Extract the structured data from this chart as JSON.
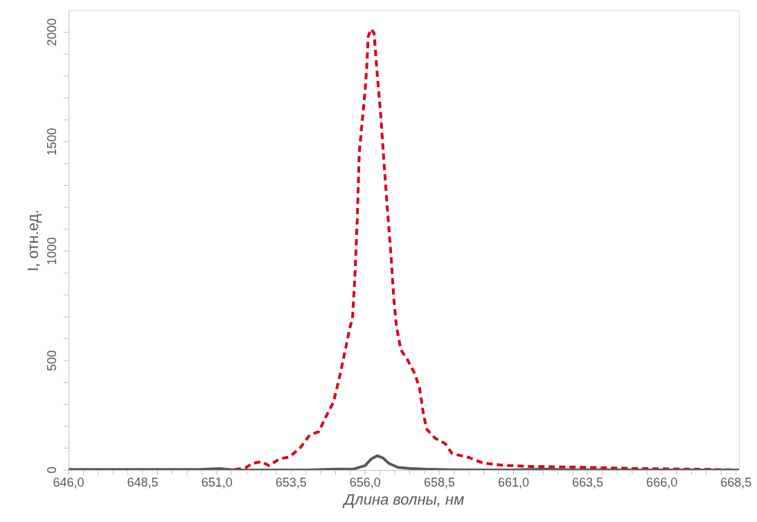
{
  "chart_data": {
    "type": "line",
    "xlabel": "Длина волны, нм",
    "ylabel": "I, отн.ед.",
    "xlim": [
      646.0,
      668.6
    ],
    "ylim": [
      0,
      2100
    ],
    "xticks": [
      {
        "value": 646.0,
        "label": "646,0"
      },
      {
        "value": 646.5,
        "label": null
      },
      {
        "value": 647.0,
        "label": null
      },
      {
        "value": 647.5,
        "label": null
      },
      {
        "value": 648.0,
        "label": null
      },
      {
        "value": 648.5,
        "label": "648,5"
      },
      {
        "value": 649.0,
        "label": null
      },
      {
        "value": 649.5,
        "label": null
      },
      {
        "value": 650.0,
        "label": null
      },
      {
        "value": 650.5,
        "label": null
      },
      {
        "value": 651.0,
        "label": "651,0"
      },
      {
        "value": 651.5,
        "label": null
      },
      {
        "value": 652.0,
        "label": null
      },
      {
        "value": 652.5,
        "label": null
      },
      {
        "value": 653.0,
        "label": null
      },
      {
        "value": 653.5,
        "label": "653,5"
      },
      {
        "value": 654.0,
        "label": null
      },
      {
        "value": 654.5,
        "label": null
      },
      {
        "value": 655.0,
        "label": null
      },
      {
        "value": 655.5,
        "label": null
      },
      {
        "value": 656.0,
        "label": "656,0"
      },
      {
        "value": 656.5,
        "label": null
      },
      {
        "value": 657.0,
        "label": null
      },
      {
        "value": 657.5,
        "label": null
      },
      {
        "value": 658.0,
        "label": null
      },
      {
        "value": 658.5,
        "label": "658,5"
      },
      {
        "value": 659.0,
        "label": null
      },
      {
        "value": 659.5,
        "label": null
      },
      {
        "value": 660.0,
        "label": null
      },
      {
        "value": 660.5,
        "label": null
      },
      {
        "value": 661.0,
        "label": "661,0"
      },
      {
        "value": 661.5,
        "label": null
      },
      {
        "value": 662.0,
        "label": null
      },
      {
        "value": 662.5,
        "label": null
      },
      {
        "value": 663.0,
        "label": null
      },
      {
        "value": 663.5,
        "label": "663,5"
      },
      {
        "value": 664.0,
        "label": null
      },
      {
        "value": 664.5,
        "label": null
      },
      {
        "value": 665.0,
        "label": null
      },
      {
        "value": 665.5,
        "label": null
      },
      {
        "value": 666.0,
        "label": "666,0"
      },
      {
        "value": 666.5,
        "label": null
      },
      {
        "value": 667.0,
        "label": null
      },
      {
        "value": 667.5,
        "label": null
      },
      {
        "value": 668.0,
        "label": null
      },
      {
        "value": 668.5,
        "label": "668,5"
      }
    ],
    "yticks": [
      0,
      {
        "value": 100,
        "label": null
      },
      {
        "value": 200,
        "label": null
      },
      {
        "value": 300,
        "label": null
      },
      {
        "value": 400,
        "label": null
      },
      500,
      {
        "value": 600,
        "label": null
      },
      {
        "value": 700,
        "label": null
      },
      {
        "value": 800,
        "label": null
      },
      {
        "value": 900,
        "label": null
      },
      1000,
      {
        "value": 1100,
        "label": null
      },
      {
        "value": 1200,
        "label": null
      },
      {
        "value": 1300,
        "label": null
      },
      {
        "value": 1400,
        "label": null
      },
      1500,
      {
        "value": 1600,
        "label": null
      },
      {
        "value": 1700,
        "label": null
      },
      {
        "value": 1800,
        "label": null
      },
      {
        "value": 1900,
        "label": null
      },
      2000
    ],
    "grid": false,
    "marker": "none",
    "series": [
      {
        "color": "#d9001b",
        "line_style": "dashed",
        "x": [
          646.0,
          651.5,
          651.96,
          652.2,
          652.5,
          652.76,
          653.1,
          653.45,
          653.8,
          654.13,
          654.43,
          654.7,
          654.93,
          655.16,
          655.5,
          655.57,
          655.65,
          655.73,
          655.8,
          656.0,
          656.05,
          656.1,
          656.2,
          656.3,
          656.41,
          656.53,
          656.64,
          656.76,
          656.87,
          656.96,
          657.05,
          657.2,
          657.44,
          657.67,
          657.83,
          657.97,
          658.08,
          658.36,
          658.7,
          658.93,
          659.5,
          659.96,
          660.6,
          661.55,
          663.15,
          665.44,
          667.7,
          668.5
        ],
        "values": [
          0,
          0,
          10,
          30,
          38,
          20,
          50,
          60,
          100,
          160,
          175,
          250,
          310,
          440,
          660,
          690,
          880,
          1140,
          1450,
          1740,
          1835,
          1980,
          2015,
          1995,
          1800,
          1610,
          1390,
          1170,
          980,
          790,
          660,
          550,
          500,
          440,
          375,
          250,
          185,
          145,
          120,
          75,
          57,
          32,
          22,
          16,
          13,
          6,
          3,
          0
        ]
      },
      {
        "color": "#595959",
        "line_style": "solid",
        "x": [
          646.0,
          649.0,
          650.5,
          651.1,
          651.6,
          654.0,
          655.0,
          655.6,
          656.0,
          656.2,
          656.4,
          656.6,
          656.8,
          657.1,
          657.5,
          658.0,
          659.0,
          661.0,
          662.0,
          663.0,
          668.6
        ],
        "values": [
          2,
          2,
          3,
          6,
          0,
          0,
          4,
          4,
          20,
          50,
          65,
          55,
          30,
          12,
          7,
          4,
          1,
          0,
          4,
          1,
          0
        ]
      }
    ]
  }
}
